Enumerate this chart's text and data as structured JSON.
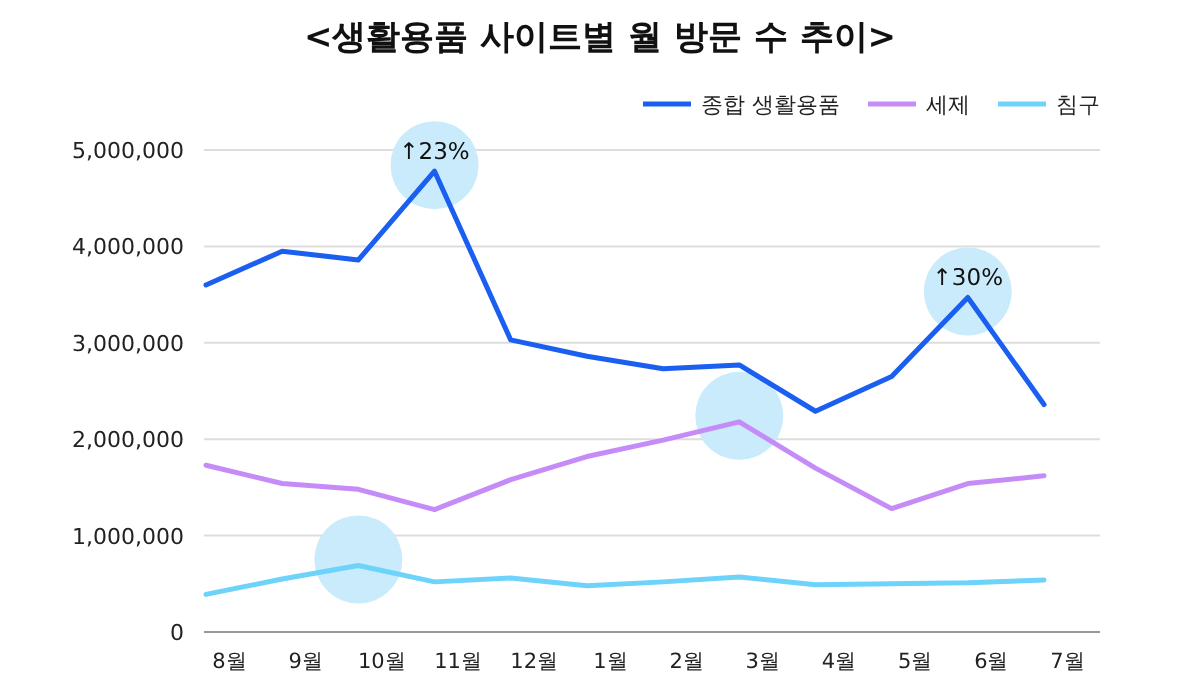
{
  "chart_data": {
    "type": "line",
    "title": "<생활용품 사이트별 월 방문 수 추이>",
    "categories": [
      "8월",
      "9월",
      "10월",
      "11월",
      "12월",
      "1월",
      "2월",
      "3월",
      "4월",
      "5월",
      "6월",
      "7월"
    ],
    "series": [
      {
        "name": "종합 생활용품",
        "color": "#1a5ff0",
        "values": [
          3600000,
          3950000,
          3860000,
          4780000,
          3030000,
          2860000,
          2730000,
          2770000,
          2290000,
          2650000,
          3470000,
          2360000
        ]
      },
      {
        "name": "세제",
        "color": "#c58cf8",
        "values": [
          1730000,
          1540000,
          1480000,
          1270000,
          1580000,
          1820000,
          1990000,
          2180000,
          1700000,
          1280000,
          1540000,
          1620000
        ]
      },
      {
        "name": "침구",
        "color": "#6dd3fb",
        "values": [
          390000,
          550000,
          690000,
          520000,
          560000,
          480000,
          520000,
          570000,
          490000,
          500000,
          510000,
          540000
        ]
      }
    ],
    "ylim": [
      0,
      5000000
    ],
    "yticks": [
      {
        "value": 0,
        "label": "0"
      },
      {
        "value": 1000000,
        "label": "1,000,000"
      },
      {
        "value": 2000000,
        "label": "2,000,000"
      },
      {
        "value": 3000000,
        "label": "3,000,000"
      },
      {
        "value": 4000000,
        "label": "4,000,000"
      },
      {
        "value": 5000000,
        "label": "5,000,000"
      }
    ],
    "annotations": [
      "↑23%",
      "↑30%"
    ],
    "grid": "y",
    "legend": "top right",
    "marker": "none",
    "line_style": "solid"
  }
}
